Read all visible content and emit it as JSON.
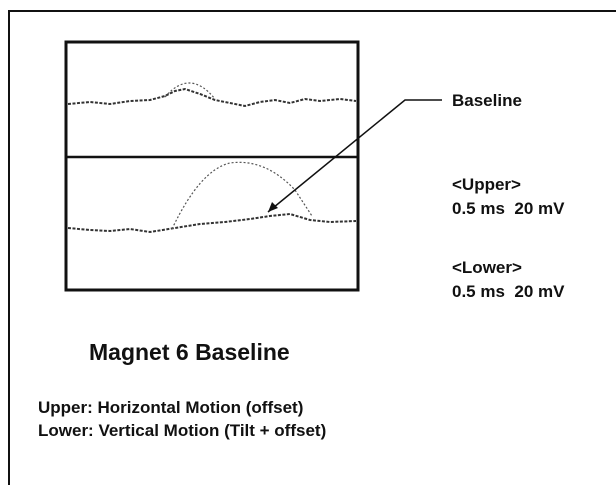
{
  "callout": {
    "label": "Baseline"
  },
  "scales": {
    "upper": {
      "heading": "<Upper>",
      "setting": "0.5 ms  20 mV"
    },
    "lower": {
      "heading": "<Lower>",
      "setting": "0.5 ms  20 mV"
    }
  },
  "title": "Magnet 6 Baseline",
  "captions": [
    "Upper: Horizontal Motion (offset)",
    "Lower: Vertical Motion (Tilt + offset)"
  ]
}
